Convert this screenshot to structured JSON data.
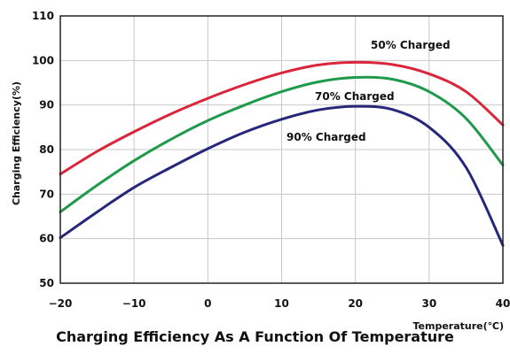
{
  "chart_data": {
    "type": "line",
    "title": "Charging Efficiency As A Function Of Temperature",
    "xlabel": "Temperature(℃)",
    "ylabel": "Charging Efficiency(%)",
    "xlim": [
      -20,
      40
    ],
    "ylim": [
      50,
      110
    ],
    "xticks": [
      -20,
      -10,
      0,
      10,
      20,
      30,
      40
    ],
    "xtick_labels": [
      "−20",
      "−10",
      "0",
      "10",
      "20",
      "30",
      "40"
    ],
    "yticks": [
      50,
      60,
      70,
      80,
      90,
      100,
      110
    ],
    "ytick_labels": [
      "50",
      "60",
      "70",
      "80",
      "90",
      "100",
      "110"
    ],
    "grid": true,
    "legend": "none",
    "series": [
      {
        "name": "50% Charged",
        "color": "#d9263b",
        "x": [
          -20,
          -15,
          -10,
          -5,
          0,
          5,
          10,
          15,
          20,
          25,
          30,
          35,
          40
        ],
        "y": [
          74.5,
          79.6,
          84.0,
          88.0,
          91.5,
          94.6,
          97.2,
          99.0,
          99.6,
          99.1,
          97.0,
          93.0,
          85.5
        ]
      },
      {
        "name": "70% Charged",
        "color": "#1f9a4b",
        "x": [
          -20,
          -15,
          -10,
          -5,
          0,
          5,
          10,
          15,
          20,
          25,
          30,
          35,
          40
        ],
        "y": [
          66.0,
          72.0,
          77.5,
          82.3,
          86.5,
          90.0,
          93.0,
          95.2,
          96.2,
          95.8,
          93.0,
          87.0,
          76.5
        ]
      },
      {
        "name": "90% Charged",
        "color": "#26267a",
        "x": [
          -20,
          -15,
          -10,
          -5,
          0,
          5,
          10,
          15,
          20,
          25,
          30,
          35,
          40
        ],
        "y": [
          60.2,
          66.0,
          71.5,
          76.0,
          80.2,
          83.9,
          86.8,
          88.9,
          89.7,
          89.0,
          85.0,
          76.0,
          58.5
        ]
      }
    ]
  }
}
